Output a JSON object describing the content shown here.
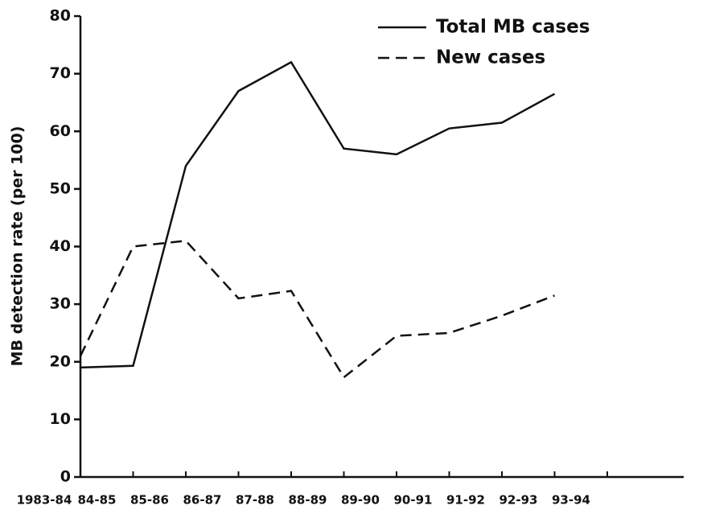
{
  "chart_data": {
    "type": "line",
    "y_label": "MB detection rate (per 100)",
    "categories": [
      "1983-84",
      "84-85",
      "85-86",
      "86-87",
      "87-88",
      "88-89",
      "89-90",
      "90-91",
      "91-92",
      "92-93",
      "93-94"
    ],
    "series": [
      {
        "name": "Total MB cases",
        "color": "#111111",
        "dash": "solid",
        "values": [
          19,
          19.3,
          54,
          67,
          72,
          57,
          56,
          60.5,
          61.5,
          66.5,
          null
        ]
      },
      {
        "name": "New cases",
        "color": "#111111",
        "dash": "dashed",
        "values": [
          21,
          40,
          41,
          31,
          32.3,
          17.3,
          24.5,
          25,
          28,
          31.5,
          null
        ]
      }
    ],
    "ylim": [
      0,
      80
    ],
    "yticks": [
      0,
      10,
      20,
      30,
      40,
      50,
      60,
      70,
      80
    ],
    "legend": "top-right"
  }
}
